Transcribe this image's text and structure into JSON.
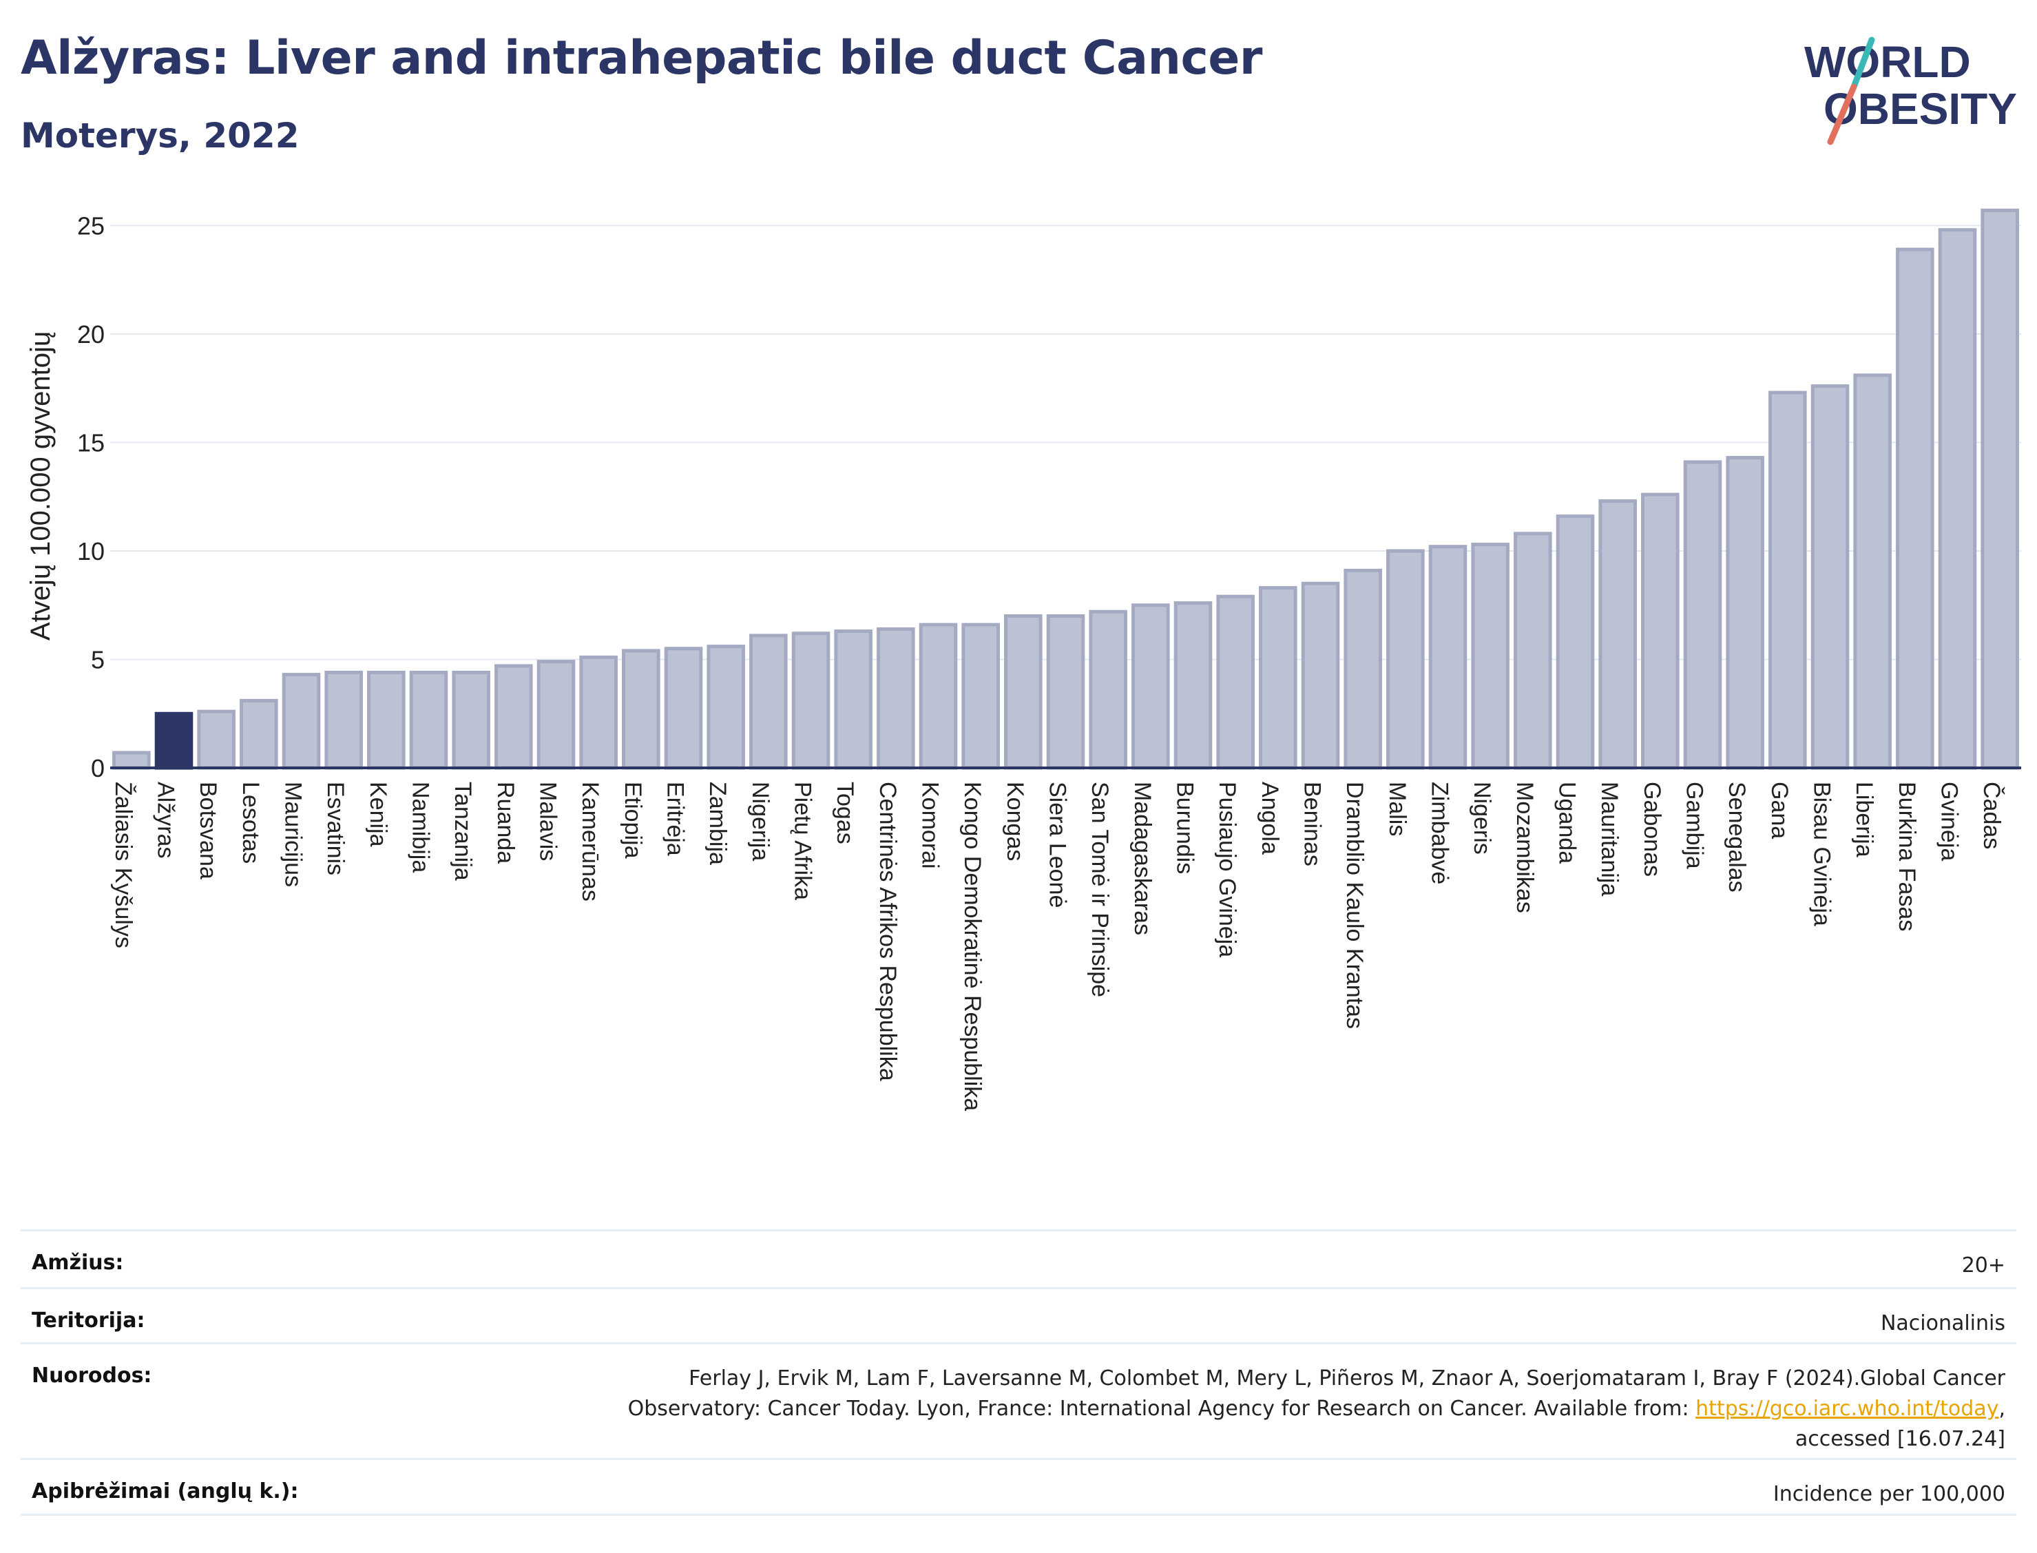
{
  "title": "Alžyras: Liver and intrahepatic bile duct Cancer",
  "subtitle": "Moterys, 2022",
  "logo": {
    "line1": "WORLD",
    "line2": "OBESITY",
    "accent_colors": [
      "#3ab8b8",
      "#e2705f"
    ]
  },
  "colors": {
    "bar": "#bcc2d3",
    "bar_stroke": "#a3aac2",
    "highlight": "#2b3566",
    "text": "#2b3566"
  },
  "chart_data": {
    "type": "bar",
    "title": "",
    "ylabel": "Atvejų 100.000 gyventojų",
    "xlabel": "",
    "ylim": [
      0,
      26
    ],
    "yticks": [
      0,
      5,
      10,
      15,
      20,
      25
    ],
    "grid": true,
    "highlight": "Alžyras",
    "categories": [
      "Žaliasis Kyšulys",
      "Alžyras",
      "Botsvana",
      "Lesotas",
      "Mauricijus",
      "Esvatinis",
      "Kenija",
      "Namibija",
      "Tanzanija",
      "Ruanda",
      "Malavis",
      "Kamerūnas",
      "Etiopija",
      "Eritrėja",
      "Zambija",
      "Nigerija",
      "Pietų Afrika",
      "Togas",
      "Centrinės Afrikos Respublika",
      "Komorai",
      "Kongo Demokratinė Respublika",
      "Kongas",
      "Siera Leonė",
      "San Tomė ir Prinsipė",
      "Madagaskaras",
      "Burundis",
      "Pusiaujo Gvinėja",
      "Angola",
      "Beninas",
      "Dramblio Kaulo Krantas",
      "Malis",
      "Zimbabvė",
      "Nigeris",
      "Mozambikas",
      "Uganda",
      "Mauritanija",
      "Gabonas",
      "Gambija",
      "Senegalas",
      "Gana",
      "Bisau Gvinėja",
      "Liberija",
      "Burkina Fasas",
      "Gvinėja",
      "Čadas"
    ],
    "values": [
      0.7,
      2.5,
      2.6,
      3.1,
      4.3,
      4.4,
      4.4,
      4.4,
      4.4,
      4.7,
      4.9,
      5.1,
      5.4,
      5.5,
      5.6,
      6.1,
      6.2,
      6.3,
      6.4,
      6.6,
      6.6,
      7.0,
      7.0,
      7.2,
      7.5,
      7.6,
      7.9,
      8.3,
      8.5,
      9.1,
      10.0,
      10.2,
      10.3,
      10.8,
      11.6,
      12.3,
      12.6,
      14.1,
      14.3,
      17.3,
      17.6,
      18.1,
      23.9,
      24.8,
      25.7
    ]
  },
  "meta": [
    {
      "label": "Amžius:",
      "value": "20+"
    },
    {
      "label": "Teritorija:",
      "value": "Nacionalinis"
    },
    {
      "label": "Nuorodos:",
      "value_pre": "Ferlay J, Ervik M, Lam F, Laversanne M, Colombet M, Mery L, Piñeros M, Znaor A, Soerjomataram I, Bray F (2024).Global Cancer Observatory: Cancer Today. Lyon, France: International Agency for Research on Cancer. Available from: ",
      "link": "https://gco.iarc.who.int/today",
      "value_post": ", accessed [16.07.24]"
    },
    {
      "label": "Apibrėžimai (anglų k.):",
      "value": "Incidence per 100,000"
    }
  ]
}
